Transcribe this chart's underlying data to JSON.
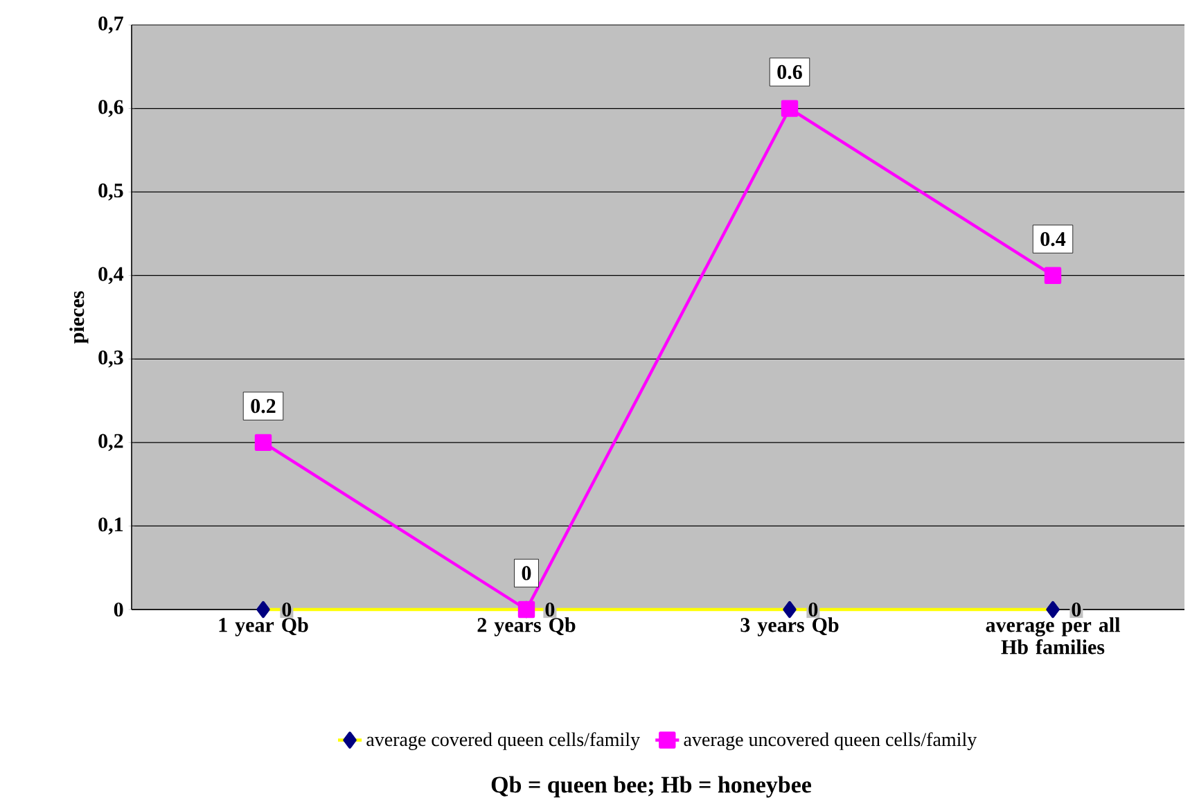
{
  "chart_data": {
    "type": "line",
    "ylabel": "pieces",
    "categories": [
      "1 year Qb",
      "2 years Qb",
      "3 years Qb",
      "average per all Hb families"
    ],
    "series": [
      {
        "name": "average covered queen cells/family",
        "color": "#ffff00",
        "colors": [
          "#000080",
          "#000080",
          "#000080",
          "#000080"
        ],
        "marker": "diamond",
        "values": [
          0,
          0,
          0,
          0
        ],
        "value_labels": [
          "0",
          "0",
          "0",
          "0"
        ]
      },
      {
        "name": "average uncovered queen cells/family",
        "color": "#ff00ff",
        "marker": "square",
        "values": [
          0.2,
          0,
          0.6,
          0.4
        ],
        "value_labels": [
          "0.2",
          "0",
          "0.6",
          "0.4"
        ]
      }
    ],
    "ylim": [
      0,
      0.7
    ],
    "yticks": [
      0,
      {
        "value": 0.1,
        "label": "0,1"
      },
      {
        "value": 0.2,
        "label": "0,2"
      },
      {
        "value": 0.3,
        "label": "0,3"
      },
      {
        "value": 0.4,
        "label": "0,4"
      },
      {
        "value": 0.5,
        "label": "0,5"
      },
      {
        "value": 0.6,
        "label": "0,6"
      },
      {
        "value": 0.7,
        "label": "0,7"
      }
    ],
    "grid": "y",
    "legend": "bottom",
    "annotations": [
      "Qb = queen bee; Hb = honeybee"
    ]
  }
}
